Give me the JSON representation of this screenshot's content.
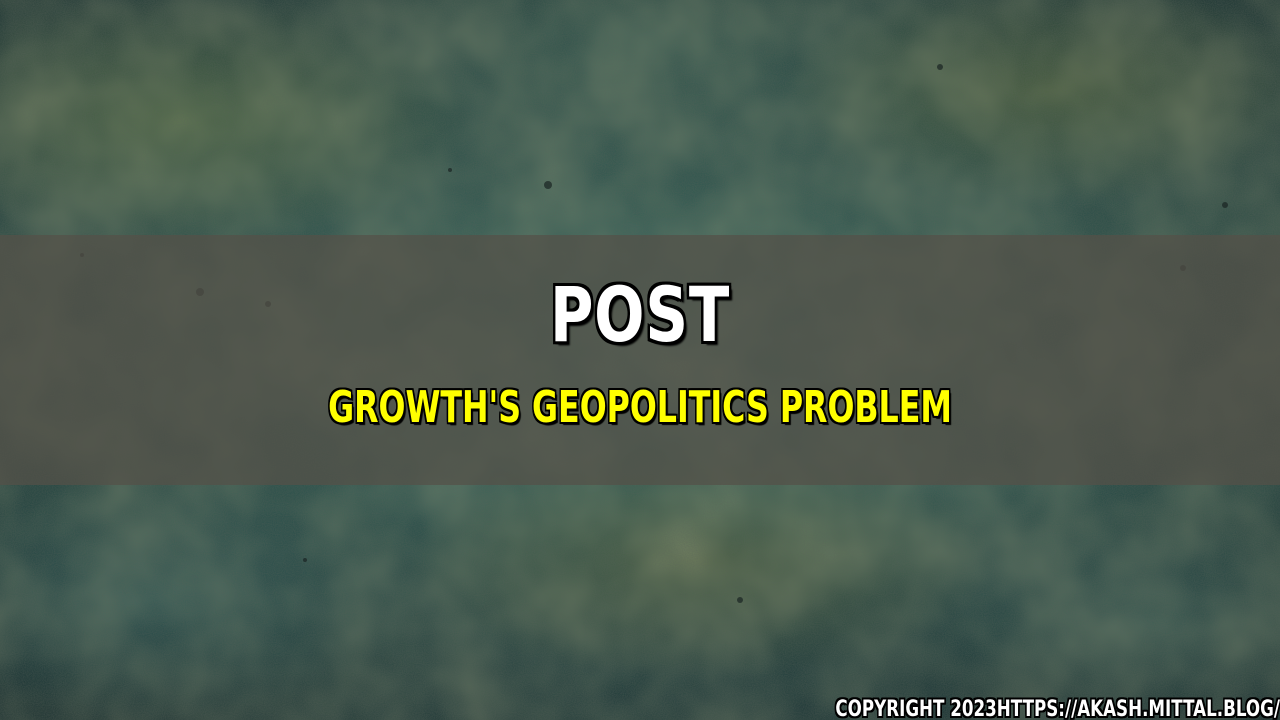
{
  "thumbnail": {
    "title": "POST",
    "subtitle": "GROWTH'S GEOPOLITICS PROBLEM",
    "copyright": "COPYRIGHT 2023HTTPS://AKASH.MITTAL.BLOG/"
  },
  "colors": {
    "title": "#ffffff",
    "subtitle": "#ffff00",
    "band": "#55504a",
    "background": "#3a6a60"
  }
}
